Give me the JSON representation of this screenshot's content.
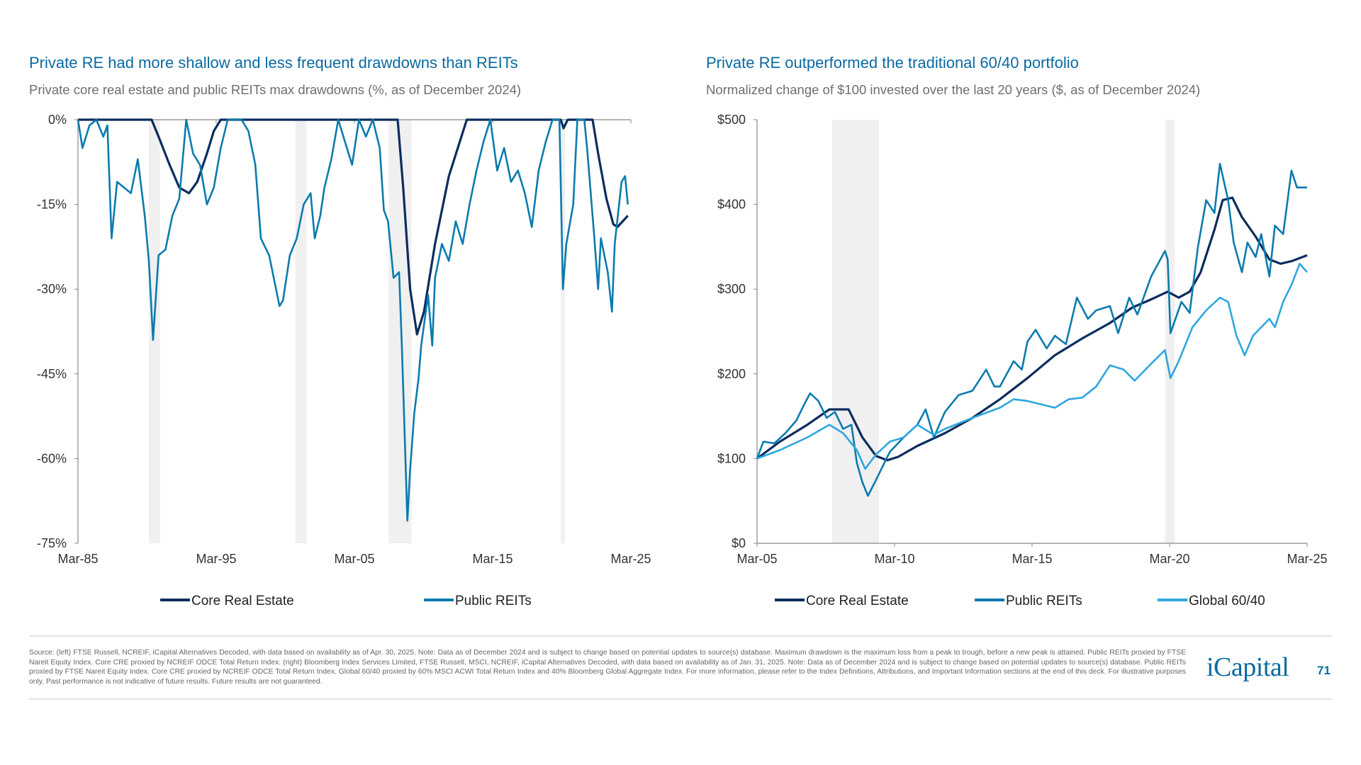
{
  "colors": {
    "core": "#0b2d5e",
    "reits": "#0b7bae",
    "global": "#2ea7df",
    "title": "#0a6aa1",
    "recession": "#f0f0f0"
  },
  "footer": {
    "source": "Source: (left) FTSE Russell, NCREIF, iCapital Alternatives Decoded, with data based on availability as of Apr. 30, 2025. Note: Data as of December 2024 and is subject to change based on potential updates to source(s) database. Maximum drawdown is the maximum loss from a peak to trough, before a new peak is attained. Public REITs proxied by FTSE Nareit Equity Index. Core CRE proxied by NCREIF ODCE Total Return Index. (right) Bloomberg Index Services Limited, FTSE Russell, MSCI, NCREIF, iCapital Alternatives Decoded, with data based on availability as of Jan. 31, 2025. Note: Data as of December 2024 and is subject to change based on potential updates to source(s) database. Public REITs proxied by FTSE Nareit Equity Index. Core CRE proxied by NCREIF ODCE Total Return Index. Global 60/40 proxied by 60% MSCI ACWI Total Return Index and 40% Bloomberg Global Aggregate Index. For more information, please refer to the Index Definitions, Attributions, and Important Information sections at the end of this deck. For illustrative purposes only. Past performance is not indicative of future results. Future results are not guaranteed.",
    "logo": "iCapital",
    "page_number": "71"
  },
  "chart_data": [
    {
      "type": "line",
      "title": "Private RE had more shallow and less frequent drawdowns than REITs",
      "subtitle": "Private core real estate and public REITs max drawdowns (%, as of December 2024)",
      "xlim": [
        1985.17,
        2025.17
      ],
      "ylim": [
        -75,
        0
      ],
      "x_ticks": [
        "Mar-85",
        "Mar-95",
        "Mar-05",
        "Mar-15",
        "Mar-25"
      ],
      "x_tick_values": [
        1985.17,
        1995.17,
        2005.17,
        2015.17,
        2025.17
      ],
      "y_ticks": [
        "0%",
        "-15%",
        "-30%",
        "-45%",
        "-60%",
        "-75%"
      ],
      "y_tick_values": [
        0,
        -15,
        -30,
        -45,
        -60,
        -75
      ],
      "recession_shading": [
        [
          1990.3,
          1991.1
        ],
        [
          2000.9,
          2001.7
        ],
        [
          2007.65,
          2009.3
        ],
        [
          2020.1,
          2020.4
        ]
      ],
      "legend": "bottom",
      "series": [
        {
          "name": "Core Real Estate",
          "color_key": "core",
          "x": [
            1985.17,
            1990.5,
            1991.0,
            1991.8,
            1992.5,
            1993.2,
            1993.8,
            1994.5,
            1995.0,
            1995.5,
            2008.3,
            2008.7,
            2009.2,
            2009.7,
            2010.2,
            2011.0,
            2012.0,
            2013.3,
            2020.1,
            2020.3,
            2020.6,
            2022.4,
            2022.8,
            2023.4,
            2023.9,
            2024.2,
            2024.95
          ],
          "y": [
            0,
            0,
            -3,
            -8,
            -12,
            -13,
            -11,
            -6,
            -2,
            0,
            0,
            -12,
            -30,
            -38,
            -34,
            -22,
            -10,
            0,
            0,
            -1.5,
            0,
            0,
            -6,
            -14,
            -18.5,
            -19,
            -17
          ]
        },
        {
          "name": "Public REITs",
          "color_key": "reits",
          "x": [
            1985.17,
            1985.5,
            1986.0,
            1986.5,
            1987.0,
            1987.3,
            1987.6,
            1988.0,
            1988.5,
            1989.0,
            1989.5,
            1990.0,
            1990.3,
            1990.6,
            1991.0,
            1991.5,
            1992.0,
            1992.5,
            1993.0,
            1993.5,
            1994.0,
            1994.5,
            1995.0,
            1995.5,
            1996.0,
            1997.0,
            1997.5,
            1998.0,
            1998.4,
            1999.0,
            1999.75,
            2000.0,
            2000.5,
            2001.0,
            2001.5,
            2002.0,
            2002.3,
            2002.7,
            2003.0,
            2003.5,
            2004.0,
            2004.5,
            2005.0,
            2005.5,
            2006.0,
            2006.5,
            2007.0,
            2007.3,
            2007.6,
            2008.0,
            2008.4,
            2008.6,
            2008.9,
            2009.0,
            2009.2,
            2009.5,
            2009.8,
            2010.0,
            2010.5,
            2010.8,
            2011.0,
            2011.5,
            2012.0,
            2012.5,
            2013.0,
            2013.5,
            2014.0,
            2014.5,
            2015.0,
            2015.5,
            2016.0,
            2016.5,
            2017.0,
            2017.5,
            2018.0,
            2018.5,
            2019.0,
            2019.5,
            2020.0,
            2020.25,
            2020.5,
            2021.0,
            2021.3,
            2021.8,
            2022.0,
            2022.5,
            2022.8,
            2023.0,
            2023.5,
            2023.8,
            2024.0,
            2024.5,
            2024.75,
            2024.95
          ],
          "y": [
            0,
            -5,
            -1,
            0,
            -3,
            -1,
            -21,
            -11,
            -12,
            -13,
            -7,
            -17,
            -25,
            -39,
            -24,
            -23,
            -17,
            -14,
            0,
            -6,
            -8,
            -15,
            -12,
            -5,
            0,
            0,
            -2,
            -8,
            -21,
            -24,
            -33,
            -32,
            -24,
            -21,
            -15,
            -13,
            -21,
            -17,
            -12,
            -7,
            0,
            -4,
            -8,
            0,
            -3,
            0,
            -5,
            -16,
            -18,
            -28,
            -27,
            -40,
            -63,
            -71,
            -62,
            -52,
            -46,
            -40,
            -31,
            -40,
            -28,
            -22,
            -25,
            -18,
            -22,
            -15,
            -9,
            -4,
            0,
            -9,
            -5,
            -11,
            -9,
            -13,
            -19,
            -9,
            -4,
            0,
            0,
            -30,
            -22,
            -15,
            0,
            0,
            -5,
            -20,
            -30,
            -21,
            -27,
            -34,
            -22,
            -11,
            -10,
            -15
          ]
        }
      ]
    },
    {
      "type": "line",
      "title": "Private RE outperformed the traditional 60/40 portfolio",
      "subtitle": "Normalized change of $100 invested over the last 20 years ($, as of December 2024)",
      "xlim": [
        2005.17,
        2025.17
      ],
      "ylim": [
        0,
        500
      ],
      "x_ticks": [
        "Mar-05",
        "Mar-10",
        "Mar-15",
        "Mar-20",
        "Mar-25"
      ],
      "x_tick_values": [
        2005.17,
        2010.17,
        2015.17,
        2020.17,
        2025.17
      ],
      "y_ticks": [
        "$500",
        "$400",
        "$300",
        "$200",
        "$100",
        "$0"
      ],
      "y_tick_values": [
        500,
        400,
        300,
        200,
        100,
        0
      ],
      "recession_shading": [
        [
          2007.9,
          2009.6
        ],
        [
          2020.0,
          2020.35
        ]
      ],
      "legend": "bottom",
      "series": [
        {
          "name": "Core Real Estate",
          "color_key": "core",
          "x": [
            2005.17,
            2006,
            2007,
            2007.8,
            2008.5,
            2009,
            2009.5,
            2009.9,
            2010.3,
            2011,
            2012,
            2013,
            2014,
            2015,
            2016,
            2017,
            2018,
            2018.8,
            2019.5,
            2020.1,
            2020.5,
            2020.9,
            2021.3,
            2021.8,
            2022.1,
            2022.45,
            2022.8,
            2023.3,
            2023.8,
            2024.2,
            2024.6,
            2025.17
          ],
          "y": [
            100,
            120,
            140,
            158,
            158,
            125,
            103,
            98,
            102,
            115,
            130,
            148,
            170,
            195,
            222,
            242,
            260,
            278,
            288,
            297,
            290,
            297,
            320,
            370,
            405,
            408,
            385,
            362,
            335,
            330,
            333,
            340
          ]
        },
        {
          "name": "Public REITs",
          "color_key": "reits",
          "x": [
            2005.17,
            2005.4,
            2005.8,
            2006.2,
            2006.6,
            2006.9,
            2007.1,
            2007.4,
            2007.7,
            2008,
            2008.3,
            2008.6,
            2008.8,
            2009.0,
            2009.2,
            2009.5,
            2009.8,
            2010,
            2010.5,
            2011,
            2011.3,
            2011.6,
            2012,
            2012.5,
            2013,
            2013.5,
            2013.8,
            2014,
            2014.5,
            2014.8,
            2015,
            2015.3,
            2015.7,
            2016,
            2016.4,
            2016.8,
            2017.2,
            2017.5,
            2018,
            2018.3,
            2018.7,
            2019,
            2019.5,
            2020,
            2020.1,
            2020.2,
            2020.6,
            2020.9,
            2021.2,
            2021.5,
            2021.8,
            2022,
            2022.3,
            2022.5,
            2022.8,
            2023,
            2023.3,
            2023.5,
            2023.8,
            2024,
            2024.3,
            2024.6,
            2024.8,
            2025.17
          ],
          "y": [
            100,
            120,
            118,
            130,
            145,
            165,
            177,
            168,
            148,
            155,
            135,
            140,
            95,
            72,
            56,
            75,
            95,
            108,
            125,
            140,
            158,
            125,
            155,
            175,
            180,
            205,
            185,
            185,
            215,
            205,
            238,
            252,
            230,
            245,
            235,
            290,
            265,
            275,
            280,
            248,
            290,
            270,
            315,
            345,
            335,
            248,
            285,
            272,
            350,
            405,
            390,
            448,
            405,
            355,
            320,
            355,
            338,
            365,
            315,
            375,
            365,
            440,
            420,
            420
          ]
        },
        {
          "name": "Global 60/40",
          "color_key": "global",
          "x": [
            2005.17,
            2006,
            2007,
            2007.8,
            2008.3,
            2008.8,
            2009.1,
            2009.5,
            2010,
            2010.5,
            2011,
            2011.6,
            2012,
            2013,
            2014,
            2014.5,
            2015,
            2016,
            2016.5,
            2017,
            2017.5,
            2018,
            2018.5,
            2018.9,
            2019.5,
            2020,
            2020.2,
            2020.5,
            2021,
            2021.5,
            2022,
            2022.3,
            2022.6,
            2022.9,
            2023.2,
            2023.5,
            2023.8,
            2024,
            2024.3,
            2024.6,
            2024.9,
            2025.17
          ],
          "y": [
            100,
            110,
            125,
            140,
            130,
            110,
            88,
            105,
            120,
            125,
            140,
            128,
            135,
            148,
            160,
            170,
            168,
            160,
            170,
            172,
            185,
            210,
            205,
            192,
            212,
            228,
            195,
            215,
            255,
            275,
            290,
            285,
            245,
            222,
            245,
            255,
            265,
            255,
            285,
            305,
            330,
            320
          ]
        }
      ]
    }
  ]
}
